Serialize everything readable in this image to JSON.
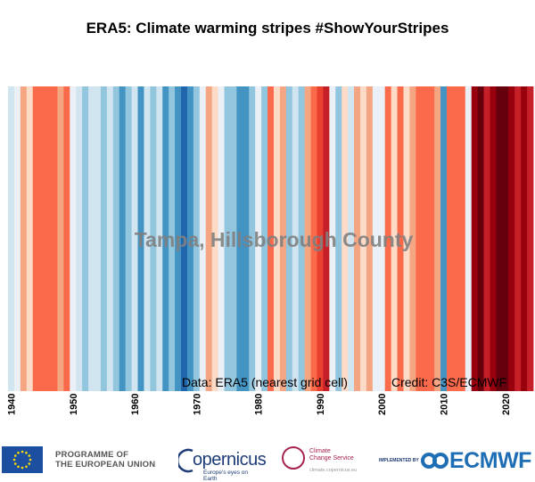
{
  "chart_data": {
    "type": "heatmap",
    "title": "ERA5: Climate warming stripes #ShowYourStripes",
    "location_label": "Tampa, Hillsborough County",
    "data_note": "Data: ERA5 (nearest grid cell)",
    "credit": "Credit: C3S/ECMWF",
    "x_start_year": 1940,
    "x_end_year": 2024,
    "xticks": [
      "1940",
      "1950",
      "1960",
      "1970",
      "1980",
      "1990",
      "2000",
      "2010",
      "2020"
    ],
    "xtick_years": [
      1940,
      1950,
      1960,
      1970,
      1980,
      1990,
      2000,
      2010,
      2020
    ],
    "anomaly_range": [
      -3,
      4
    ],
    "colors_scale": {
      "-3": "#2166ac",
      "-2": "#4393c3",
      "-1": "#92c5de",
      "0": "#d1e5f0",
      "1": "#fddbc7",
      "2": "#f4a582",
      "3": "#d6604d",
      "4": "#e94030",
      "5": "#c51f27",
      "6": "#99000d",
      "7": "#67000d"
    },
    "years": [
      1940,
      1941,
      1942,
      1943,
      1944,
      1945,
      1946,
      1947,
      1948,
      1949,
      1950,
      1951,
      1952,
      1953,
      1954,
      1955,
      1956,
      1957,
      1958,
      1959,
      1960,
      1961,
      1962,
      1963,
      1964,
      1965,
      1966,
      1967,
      1968,
      1969,
      1970,
      1971,
      1972,
      1973,
      1974,
      1975,
      1976,
      1977,
      1978,
      1979,
      1980,
      1981,
      1982,
      1983,
      1984,
      1985,
      1986,
      1987,
      1988,
      1989,
      1990,
      1991,
      1992,
      1993,
      1994,
      1995,
      1996,
      1997,
      1998,
      1999,
      2000,
      2001,
      2002,
      2003,
      2004,
      2005,
      2006,
      2007,
      2008,
      2009,
      2010,
      2011,
      2012,
      2013,
      2014,
      2015,
      2016,
      2017,
      2018,
      2019,
      2020,
      2021,
      2022,
      2023,
      2024
    ],
    "values": [
      -0.5,
      0,
      2,
      1,
      3,
      3,
      3,
      3,
      2,
      3,
      0,
      -0.5,
      -1,
      -0.5,
      -0.5,
      -1,
      -0.5,
      -1,
      -2,
      -1,
      -0.5,
      -2,
      -0.5,
      -1,
      -0.5,
      -2,
      -1,
      -2,
      -3,
      -2,
      -1,
      0,
      2,
      1,
      0,
      -1,
      -1,
      -2,
      -2,
      -1,
      0,
      -1,
      3,
      1,
      2,
      -1,
      -0.5,
      -1,
      2,
      3,
      4,
      5,
      0,
      -1,
      1,
      -0.5,
      2,
      1,
      2,
      0,
      0,
      3,
      1,
      3,
      1,
      2,
      3,
      3,
      3,
      2,
      -2,
      3,
      3,
      3,
      0,
      6,
      7,
      5,
      6,
      7,
      7,
      6,
      5,
      6,
      5
    ]
  },
  "logos": {
    "eu_line1": "PROGRAMME OF",
    "eu_line2": "THE EUROPEAN UNION",
    "copernicus": "opernicus",
    "copernicus_tagline": "Europe's eyes on Earth",
    "ccs_line1": "Climate",
    "ccs_line2": "Change Service",
    "ccs_url": "climate.copernicus.eu",
    "implemented_by": "IMPLEMENTED BY",
    "ecmwf": "ECMWF"
  }
}
